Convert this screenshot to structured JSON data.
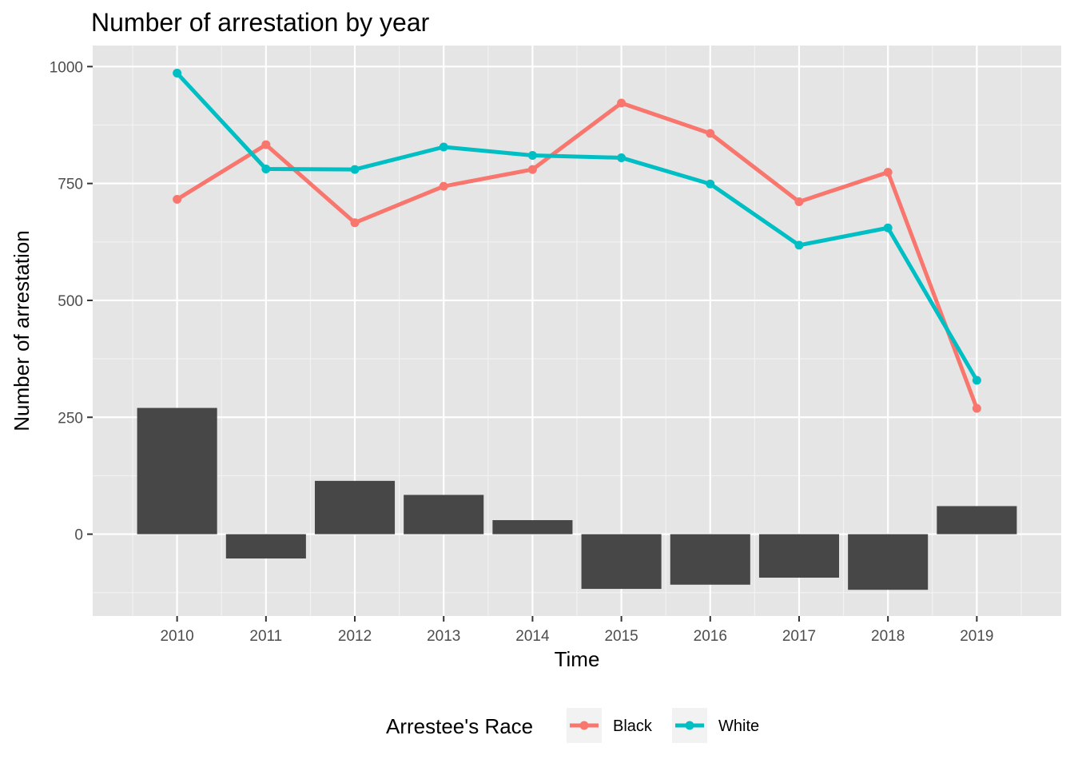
{
  "chart_data": {
    "type": "line",
    "title": "Number of arrestation by year",
    "xlabel": "Time",
    "ylabel": "Number of arrestation",
    "x": [
      2010,
      2011,
      2012,
      2013,
      2014,
      2015,
      2016,
      2017,
      2018,
      2019
    ],
    "x_tick_labels": [
      "2010",
      "2011",
      "2012",
      "2013",
      "2014",
      "2015",
      "2016",
      "2017",
      "2018",
      "2019"
    ],
    "y_ticks": [
      0,
      250,
      500,
      750,
      1000
    ],
    "y_tick_labels": [
      "0",
      "250",
      "500",
      "750",
      "1000"
    ],
    "xlim": [
      2009.05,
      2019.95
    ],
    "ylim": [
      -175,
      1045
    ],
    "grid": true,
    "series": [
      {
        "name": "Black",
        "color": "#F8766D",
        "values": [
          716,
          833,
          666,
          744,
          780,
          922,
          857,
          711,
          774,
          269
        ]
      },
      {
        "name": "White",
        "color": "#00BFC4",
        "values": [
          986,
          781,
          780,
          828,
          810,
          805,
          749,
          618,
          655,
          329
        ]
      }
    ],
    "difference_bars": {
      "color": "#474747",
      "values": [
        270,
        -52,
        114,
        84,
        30,
        -117,
        -108,
        -93,
        -119,
        60
      ]
    },
    "legend": {
      "title": "Arrestee's Race",
      "position": "bottom",
      "labels": [
        "Black",
        "White"
      ]
    },
    "colors": {
      "panel_bg": "#E5E5E5",
      "grid": "#FFFFFF"
    }
  }
}
